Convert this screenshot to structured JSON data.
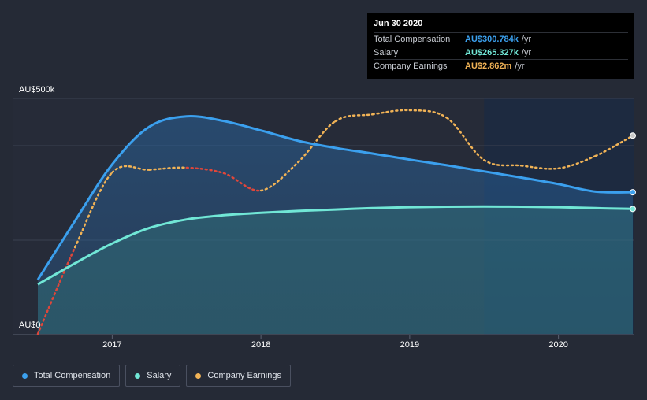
{
  "tooltip": {
    "date": "Jun 30 2020",
    "rows": [
      {
        "label": "Total Compensation",
        "value": "AU$300.784k",
        "unit": "/yr",
        "color": "#3ba0ee"
      },
      {
        "label": "Salary",
        "value": "AU$265.327k",
        "unit": "/yr",
        "color": "#71e7d6"
      },
      {
        "label": "Company Earnings",
        "value": "AU$2.862m",
        "unit": "/yr",
        "color": "#f1b356"
      }
    ]
  },
  "legend": [
    {
      "label": "Total Compensation",
      "color": "#3ba0ee"
    },
    {
      "label": "Salary",
      "color": "#71e7d6"
    },
    {
      "label": "Company Earnings",
      "color": "#f1b356"
    }
  ],
  "chart_data": {
    "type": "area",
    "title": "",
    "y_axis_labels": {
      "top": "AU$500k",
      "bottom": "AU$0"
    },
    "ylim": [
      0,
      500
    ],
    "xlim": [
      2016.5,
      2020.5
    ],
    "x_ticks": [
      {
        "value": 2017,
        "label": "2017"
      },
      {
        "value": 2018,
        "label": "2018"
      },
      {
        "value": 2019,
        "label": "2019"
      },
      {
        "value": 2020,
        "label": "2020"
      }
    ],
    "forecast_start": 2019.5,
    "series": [
      {
        "name": "Total Compensation",
        "unit": "AU$k",
        "color": "#3ba0ee",
        "x": [
          2016.5,
          2016.75,
          2017.0,
          2017.25,
          2017.5,
          2017.75,
          2018.0,
          2018.25,
          2018.5,
          2018.75,
          2019.0,
          2019.25,
          2019.5,
          2019.75,
          2020.0,
          2020.25,
          2020.5
        ],
        "values": [
          115,
          240,
          360,
          440,
          462,
          452,
          432,
          410,
          395,
          383,
          370,
          358,
          345,
          332,
          318,
          302,
          300.784
        ]
      },
      {
        "name": "Salary",
        "unit": "AU$k",
        "color": "#71e7d6",
        "x": [
          2016.5,
          2016.75,
          2017.0,
          2017.25,
          2017.5,
          2017.75,
          2018.0,
          2018.25,
          2018.5,
          2018.75,
          2019.0,
          2019.25,
          2019.5,
          2019.75,
          2020.0,
          2020.25,
          2020.5
        ],
        "values": [
          105,
          150,
          192,
          225,
          243,
          252,
          257,
          261,
          264,
          267,
          269,
          270,
          270.5,
          270,
          269,
          267,
          265.327
        ]
      },
      {
        "name": "Company Earnings",
        "unit": "AU$m",
        "color": "#f1b356",
        "decline_color": "#e0463a",
        "scale_max_m": 3.4,
        "x": [
          2016.5,
          2016.75,
          2017.0,
          2017.25,
          2017.5,
          2017.75,
          2018.0,
          2018.25,
          2018.5,
          2018.75,
          2019.0,
          2019.25,
          2019.5,
          2019.75,
          2020.0,
          2020.25,
          2020.5
        ],
        "values": [
          0.0,
          1.25,
          2.33,
          2.37,
          2.4,
          2.32,
          2.07,
          2.48,
          3.07,
          3.17,
          3.23,
          3.12,
          2.51,
          2.43,
          2.39,
          2.57,
          2.862
        ]
      }
    ]
  }
}
